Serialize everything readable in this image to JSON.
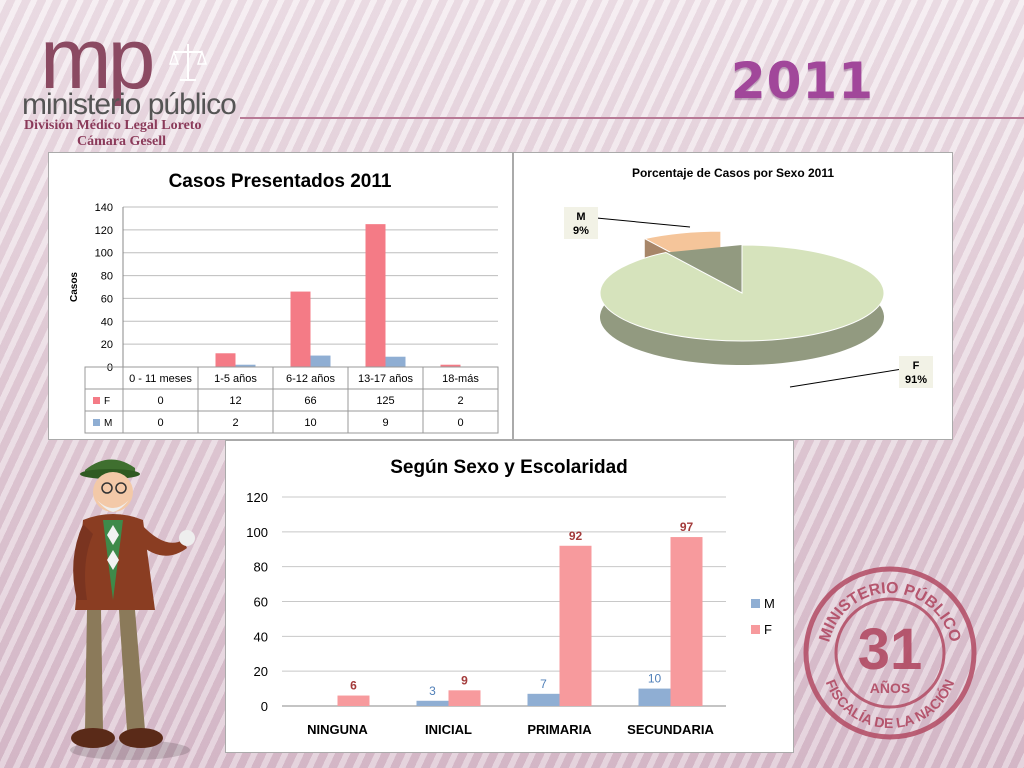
{
  "header": {
    "logo_mark": "mp",
    "logo_word": "ministerio público",
    "division": "División Médico Legal Loreto",
    "unit": "Cámara Gesell",
    "year": "2011"
  },
  "seal": {
    "top_text": "MINISTERIO PÚBLICO",
    "number": "31",
    "anos": "AÑOS",
    "bottom_text": "FISCALÍA DE LA NACIÓN"
  },
  "chart_data": [
    {
      "type": "bar",
      "title": "Casos Presentados 2011",
      "ylabel": "Casos",
      "xlabel": "",
      "ylim": [
        0,
        140
      ],
      "yticks": [
        0,
        20,
        40,
        60,
        80,
        100,
        120,
        140
      ],
      "categories": [
        "0 - 11 meses",
        "1-5 años",
        "6-12 años",
        "13-17 años",
        "18-más"
      ],
      "series": [
        {
          "name": "F",
          "values": [
            0,
            12,
            66,
            125,
            2
          ],
          "color": "#f47b86"
        },
        {
          "name": "M",
          "values": [
            0,
            2,
            10,
            9,
            0
          ],
          "color": "#8faed3"
        }
      ],
      "grid": true,
      "legend": "data-table"
    },
    {
      "type": "pie",
      "title": "Porcentaje  de Casos por Sexo  2011",
      "slices": [
        {
          "label": "M",
          "value": 9,
          "pct_label": "9%",
          "color": "#f5c59a"
        },
        {
          "label": "F",
          "value": 91,
          "pct_label": "91%",
          "color": "#d6e3bc"
        }
      ]
    },
    {
      "type": "bar",
      "title": "Según Sexo y Escolaridad",
      "ylim": [
        0,
        120
      ],
      "yticks": [
        0,
        20,
        40,
        60,
        80,
        100,
        120
      ],
      "categories": [
        "NINGUNA",
        "INICIAL",
        "PRIMARIA",
        "SECUNDARIA"
      ],
      "series": [
        {
          "name": "M",
          "values": [
            null,
            3,
            7,
            10
          ],
          "color": "#8faed3",
          "label_color": "#4f7fb8"
        },
        {
          "name": "F",
          "values": [
            6,
            9,
            92,
            97
          ],
          "color": "#f79a9d",
          "label_color": "#a33a3a"
        }
      ],
      "grid": true,
      "legend": "right"
    }
  ]
}
